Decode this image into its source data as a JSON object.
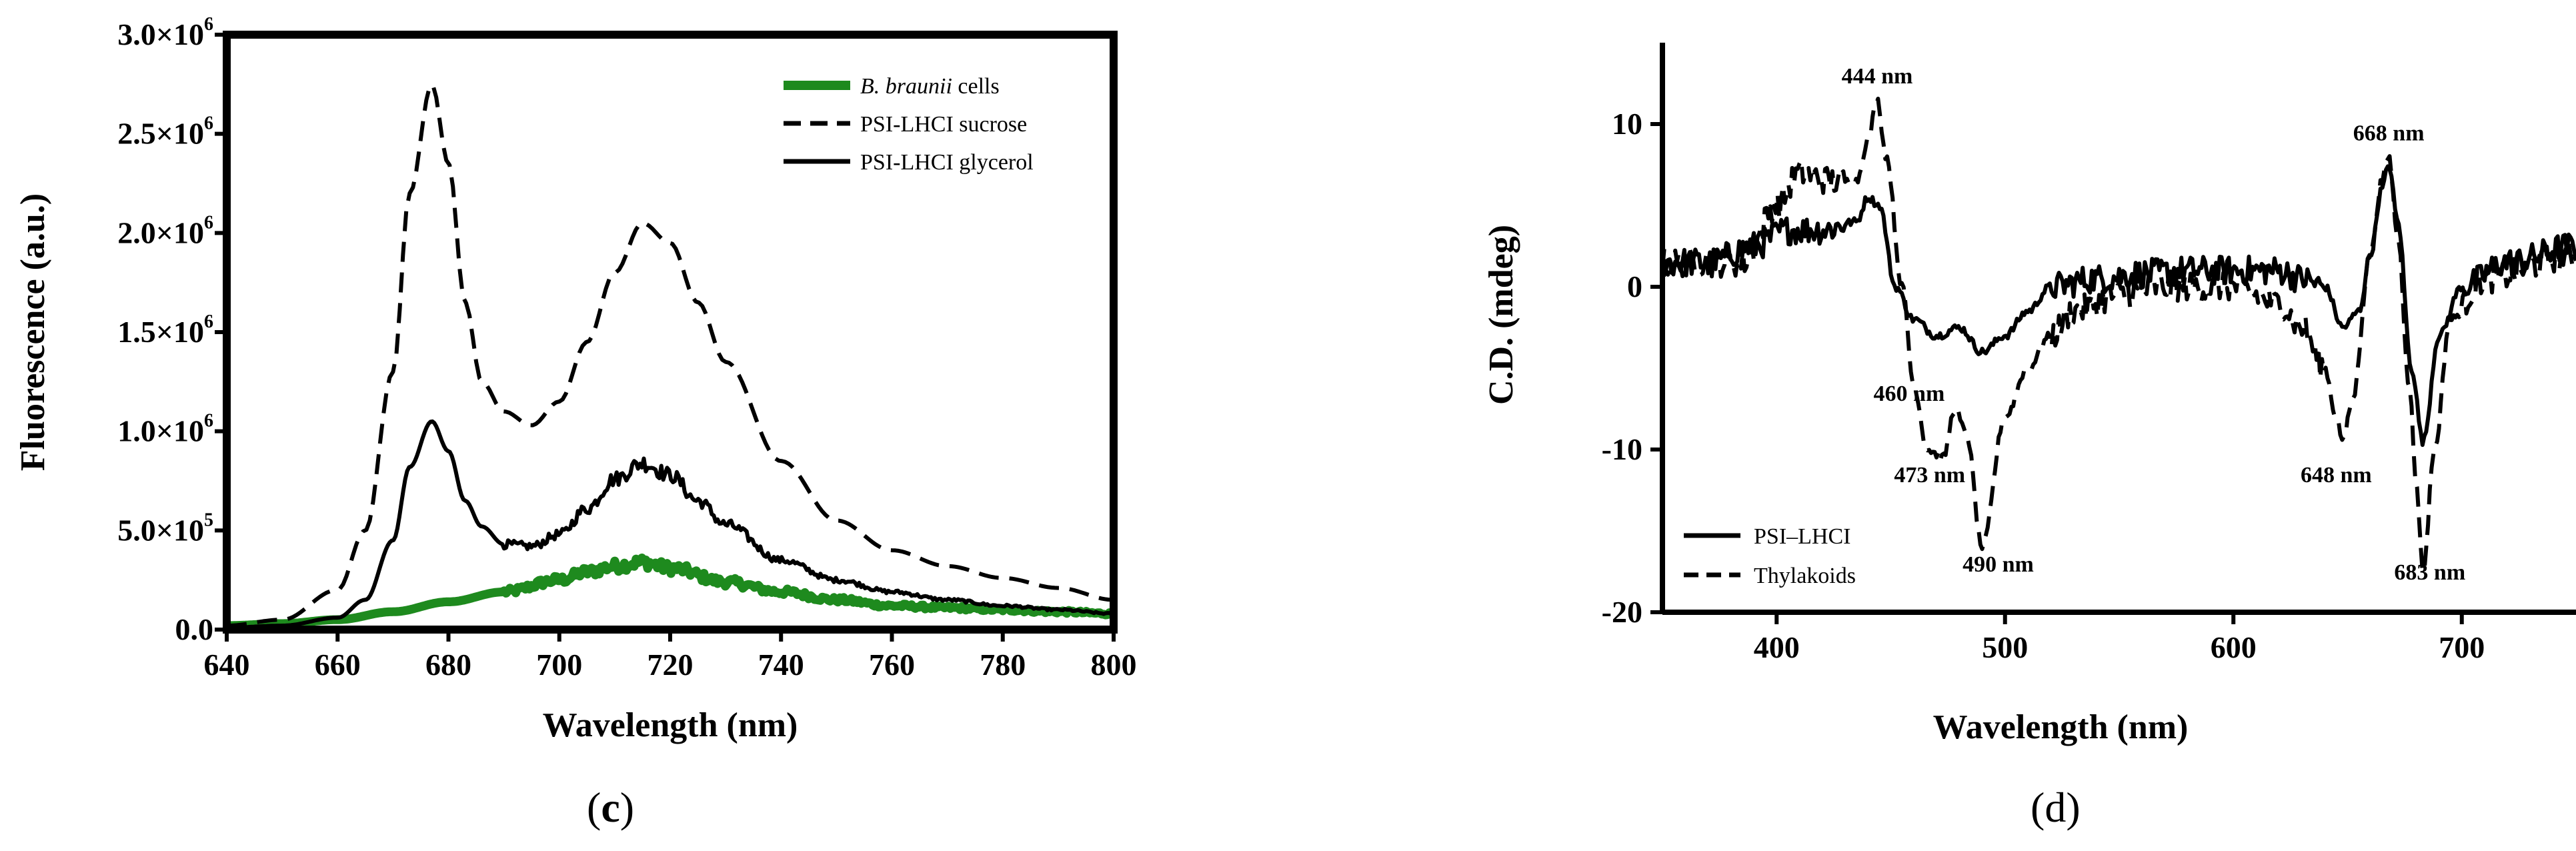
{
  "chart_data": [
    {
      "type": "line",
      "panel": "(c)",
      "panel_paren_left": "(",
      "panel_letter": "c",
      "panel_paren_right": ")",
      "xlabel": "Wavelength (nm)",
      "ylabel": "Fluorescence (a.u.)",
      "xlim": [
        640,
        800
      ],
      "ylim": [
        0,
        3000000
      ],
      "x_ticks": [
        "640",
        "660",
        "680",
        "700",
        "720",
        "740",
        "760",
        "780",
        "800"
      ],
      "y_ticks": [
        {
          "value": 0,
          "base": "0.0",
          "exp": ""
        },
        {
          "value": 500000,
          "base": "5.0×10",
          "exp": "5"
        },
        {
          "value": 1000000,
          "base": "1.0×10",
          "exp": "6"
        },
        {
          "value": 1500000,
          "base": "1.5×10",
          "exp": "6"
        },
        {
          "value": 2000000,
          "base": "2.0×10",
          "exp": "6"
        },
        {
          "value": 2500000,
          "base": "2.5×10",
          "exp": "6"
        },
        {
          "value": 3000000,
          "base": "3.0×10",
          "exp": "6"
        }
      ],
      "legend_position": "top-right",
      "series": [
        {
          "name": "B. braunii cells",
          "name_italic": "B. braunii",
          "name_rest": " cells",
          "color": "#1e8a1e",
          "style": "solid-thick",
          "x": [
            640,
            650,
            660,
            670,
            680,
            690,
            700,
            705,
            710,
            715,
            720,
            730,
            740,
            750,
            760,
            770,
            780,
            790,
            800
          ],
          "y": [
            20000,
            30000,
            50000,
            90000,
            140000,
            190000,
            250000,
            290000,
            320000,
            340000,
            310000,
            240000,
            190000,
            150000,
            120000,
            110000,
            100000,
            90000,
            80000
          ]
        },
        {
          "name": "PSI-LHCI sucrose",
          "color": "#000000",
          "style": "dashed",
          "x": [
            640,
            650,
            660,
            665,
            670,
            673,
            677,
            680,
            683,
            686,
            690,
            695,
            700,
            705,
            710,
            715,
            720,
            725,
            730,
            740,
            750,
            760,
            770,
            780,
            790,
            800
          ],
          "y": [
            20000,
            50000,
            200000,
            500000,
            1300000,
            2200000,
            2750000,
            2350000,
            1650000,
            1250000,
            1100000,
            1030000,
            1150000,
            1450000,
            1800000,
            2050000,
            1950000,
            1650000,
            1350000,
            850000,
            550000,
            400000,
            320000,
            260000,
            210000,
            150000
          ]
        },
        {
          "name": "PSI-LHCI glycerol",
          "color": "#000000",
          "style": "solid",
          "x": [
            640,
            650,
            660,
            665,
            670,
            673,
            677,
            680,
            683,
            686,
            690,
            695,
            700,
            705,
            710,
            715,
            720,
            725,
            730,
            740,
            750,
            760,
            770,
            780,
            790,
            800
          ],
          "y": [
            10000,
            20000,
            60000,
            150000,
            450000,
            820000,
            1050000,
            900000,
            650000,
            520000,
            430000,
            420000,
            480000,
            610000,
            760000,
            840000,
            780000,
            650000,
            530000,
            350000,
            250000,
            190000,
            150000,
            120000,
            100000,
            80000
          ]
        }
      ]
    },
    {
      "type": "line",
      "panel": "(d)",
      "xlabel": "Wavelength (nm)",
      "ylabel": "C.D. (mdeg)",
      "xlim": [
        350,
        750
      ],
      "ylim": [
        -20,
        15
      ],
      "x_ticks": [
        "400",
        "500",
        "600",
        "700"
      ],
      "y_ticks": [
        "10",
        "0",
        "-10",
        "-20"
      ],
      "legend_position": "bottom-left",
      "annotations": [
        {
          "text": "444 nm",
          "x": 444,
          "y": 12.5
        },
        {
          "text": "460 nm",
          "x": 458,
          "y": -7
        },
        {
          "text": "473 nm",
          "x": 467,
          "y": -12
        },
        {
          "text": "490 nm",
          "x": 497,
          "y": -17.5
        },
        {
          "text": "648 nm",
          "x": 645,
          "y": -12
        },
        {
          "text": "668 nm",
          "x": 668,
          "y": 9
        },
        {
          "text": "683 nm",
          "x": 686,
          "y": -18
        }
      ],
      "series": [
        {
          "name": "PSI–LHCI",
          "color": "#000000",
          "style": "solid",
          "x": [
            350,
            370,
            390,
            405,
            420,
            435,
            440,
            445,
            452,
            460,
            470,
            480,
            490,
            500,
            510,
            520,
            540,
            560,
            580,
            600,
            620,
            630,
            640,
            648,
            655,
            660,
            665,
            668,
            672,
            678,
            683,
            690,
            700,
            720,
            750
          ],
          "y": [
            1.5,
            1.5,
            2.5,
            3.5,
            3.5,
            4,
            5.5,
            5,
            0,
            -2,
            -3,
            -2.5,
            -4,
            -3,
            -1.5,
            0,
            0.5,
            0.8,
            1,
            1,
            1,
            0.5,
            0,
            -2.5,
            -1.5,
            2,
            6,
            7.5,
            4,
            -5,
            -9.5,
            -3,
            0,
            1.5,
            2.5
          ]
        },
        {
          "name": "Thylakoids",
          "color": "#000000",
          "style": "dashed",
          "x": [
            350,
            370,
            385,
            400,
            410,
            425,
            435,
            440,
            444,
            448,
            455,
            460,
            466,
            473,
            478,
            483,
            490,
            500,
            510,
            520,
            530,
            550,
            570,
            600,
            620,
            630,
            640,
            645,
            648,
            652,
            660,
            665,
            668,
            672,
            677,
            680,
            683,
            688,
            695,
            710,
            750
          ],
          "y": [
            1.5,
            1.5,
            1.5,
            5,
            7,
            6.5,
            6.5,
            9,
            11.5,
            8,
            0,
            -6,
            -10,
            -10.5,
            -7.5,
            -9,
            -16,
            -8,
            -5,
            -3,
            -1.5,
            -0.5,
            0,
            0,
            -1,
            -2.5,
            -5,
            -8,
            -9.5,
            -7,
            2,
            6.5,
            8,
            3,
            -6,
            -12,
            -17.5,
            -10,
            -2,
            0.5,
            2
          ]
        }
      ]
    }
  ]
}
